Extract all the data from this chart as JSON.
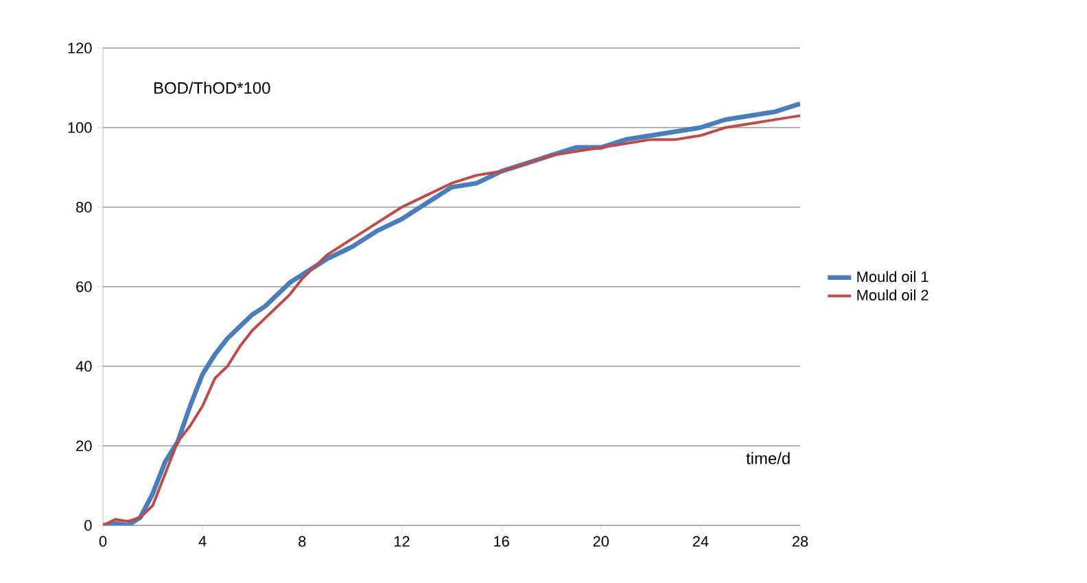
{
  "chart_data": {
    "type": "line",
    "xlabel": "time/d",
    "ylabel": "BOD/ThOD*100",
    "x": [
      0,
      0.5,
      1,
      1.5,
      2,
      2.5,
      3,
      3.5,
      4,
      4.5,
      5,
      5.5,
      6,
      6.5,
      7,
      7.5,
      8,
      9,
      10,
      11,
      12,
      13,
      14,
      15,
      16,
      17,
      18,
      19,
      20,
      21,
      22,
      23,
      24,
      25,
      26,
      27,
      28
    ],
    "series": [
      {
        "name": "Mould oil 1",
        "color": "#4a7ebb",
        "values": [
          0,
          0.5,
          0,
          2,
          8,
          16,
          21,
          30,
          38,
          43,
          47,
          50,
          53,
          55,
          58,
          61,
          63,
          67,
          70,
          74,
          77,
          81,
          85,
          86,
          89,
          91,
          93,
          95,
          95,
          97,
          98,
          99,
          100,
          102,
          103,
          104,
          106
        ]
      },
      {
        "name": "Mould oil 2",
        "color": "#be4b48",
        "values": [
          0,
          1.5,
          1,
          2,
          5,
          13,
          21,
          25,
          30,
          37,
          40,
          45,
          49,
          52,
          55,
          58,
          62,
          68,
          72,
          76,
          80,
          83,
          86,
          88,
          89,
          91,
          93,
          94,
          95,
          96,
          97,
          97,
          98,
          100,
          101,
          102,
          103
        ]
      }
    ],
    "xlim": [
      0,
      28
    ],
    "xticks": [
      0,
      4,
      8,
      12,
      16,
      20,
      24,
      28
    ],
    "ylim": [
      0,
      120
    ],
    "yticks": [
      0,
      20,
      40,
      60,
      80,
      100,
      120
    ],
    "grid": "y",
    "legend": "right",
    "marker": "none",
    "line_style": "solid"
  }
}
